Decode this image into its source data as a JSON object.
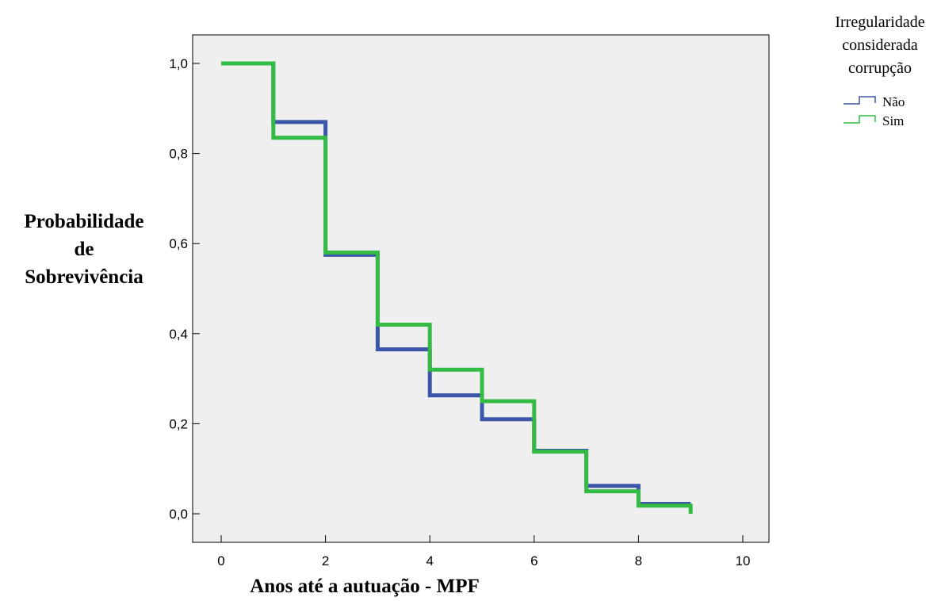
{
  "chart_data": {
    "type": "line",
    "step": true,
    "xlabel": "Anos até a autuação - MPF",
    "ylabel_lines": [
      "Probabilidade",
      "de",
      "Sobrevivência"
    ],
    "xlim": [
      0,
      10
    ],
    "ylim": [
      0,
      1
    ],
    "x_ticks": [
      0,
      2,
      4,
      6,
      8,
      10
    ],
    "x_tick_labels": [
      "0",
      "2",
      "4",
      "6",
      "8",
      "10"
    ],
    "y_ticks": [
      0,
      0.2,
      0.4,
      0.6,
      0.8,
      1.0
    ],
    "y_tick_labels": [
      "0,0",
      "0,2",
      "0,4",
      "0,6",
      "0,8",
      "1,0"
    ],
    "grid": false,
    "plot_background": "#efefef",
    "legend": {
      "title_lines": [
        "Irregularidade",
        "considerada",
        "corrupção"
      ],
      "placement": "top-right outside"
    },
    "series": [
      {
        "name": "Não",
        "color": "#3b55a8",
        "x": [
          0,
          1,
          2,
          3,
          4,
          5,
          6,
          7,
          8,
          9
        ],
        "y": [
          1.0,
          0.87,
          0.575,
          0.365,
          0.263,
          0.21,
          0.14,
          0.062,
          0.022,
          0.022
        ]
      },
      {
        "name": "Sim",
        "color": "#33bb44",
        "x": [
          0,
          1,
          2,
          3,
          4,
          5,
          6,
          7,
          8,
          9
        ],
        "y": [
          1.0,
          0.835,
          0.58,
          0.42,
          0.32,
          0.25,
          0.138,
          0.05,
          0.018,
          0.0
        ]
      }
    ]
  }
}
